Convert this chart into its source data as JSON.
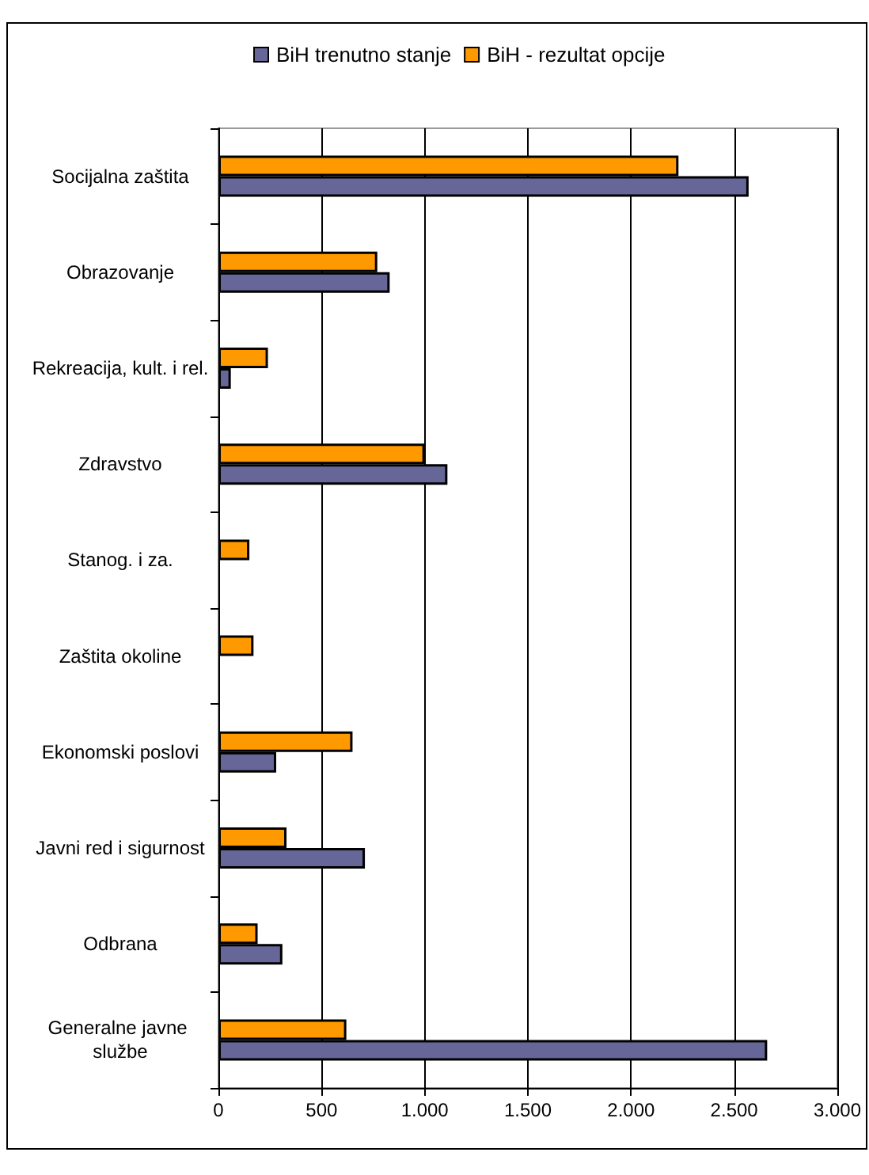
{
  "chart_data": {
    "type": "bar",
    "orientation": "horizontal",
    "categories": [
      "Socijalna zaštita",
      "Obrazovanje",
      "Rekreacija, kult. i rel.",
      "Zdravstvo",
      "Stanog. i za.",
      "Zaštita okoline",
      "Ekonomski poslovi",
      "Javni red i sigurnost",
      "Odbrana",
      "Generalne javne službe"
    ],
    "series": [
      {
        "name": "BiH trenutno stanje",
        "color": "#666699",
        "values": [
          2570,
          830,
          60,
          1110,
          null,
          null,
          280,
          710,
          310,
          2660
        ]
      },
      {
        "name": "BiH - rezultat opcije",
        "color": "#ff9900",
        "values": [
          2230,
          770,
          240,
          1000,
          150,
          170,
          650,
          330,
          190,
          620
        ]
      }
    ],
    "xlim": [
      0,
      3000
    ],
    "xticks": [
      {
        "value": 0,
        "label": "0"
      },
      {
        "value": 500,
        "label": "500"
      },
      {
        "value": 1000,
        "label": "1.000"
      },
      {
        "value": 1500,
        "label": "1.500"
      },
      {
        "value": 2000,
        "label": "2.000"
      },
      {
        "value": 2500,
        "label": "2.500"
      },
      {
        "value": 3000,
        "label": "3.000"
      }
    ],
    "grid": "x",
    "legend": "top"
  }
}
